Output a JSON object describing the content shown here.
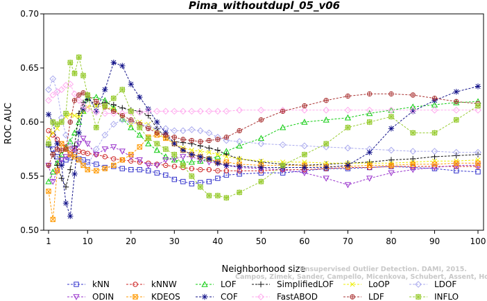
{
  "chart_data": {
    "type": "line",
    "title": "Pima_withoutdupl_05_v06",
    "xlabel": "Neighborhood size",
    "ylabel": "ROC AUC",
    "xlim": [
      1,
      100
    ],
    "ylim": [
      0.5,
      0.7
    ],
    "xticks": [
      "1",
      "10",
      "20",
      "30",
      "40",
      "50",
      "60",
      "70",
      "80",
      "90",
      "100"
    ],
    "yticks": [
      "0.50",
      "0.55",
      "0.60",
      "0.65",
      "0.70"
    ],
    "watermark_line1": "Unsupervised Outlier Detection. DAMI, 2015.",
    "watermark_line2": "Campos, Zimek, Sander, Campello, Micenkova, Schubert, Assent, Houle",
    "legend_position": "bottom",
    "x": [
      1,
      2,
      3,
      4,
      5,
      6,
      7,
      8,
      9,
      10,
      12,
      14,
      16,
      18,
      20,
      22,
      24,
      26,
      28,
      30,
      32,
      34,
      36,
      38,
      40,
      42,
      45,
      50,
      55,
      60,
      65,
      70,
      75,
      80,
      85,
      90,
      95,
      100
    ],
    "series": [
      {
        "name": "kNN",
        "color": "#3333cc",
        "marker": "square",
        "values": [
          0.579,
          0.575,
          0.568,
          0.562,
          0.565,
          0.567,
          0.568,
          0.566,
          0.565,
          0.563,
          0.561,
          0.558,
          0.559,
          0.557,
          0.556,
          0.556,
          0.555,
          0.553,
          0.551,
          0.547,
          0.545,
          0.543,
          0.544,
          0.545,
          0.548,
          0.551,
          0.552,
          0.553,
          0.553,
          0.555,
          0.557,
          0.557,
          0.558,
          0.559,
          0.558,
          0.557,
          0.555,
          0.554
        ]
      },
      {
        "name": "kNNW",
        "color": "#cc2222",
        "marker": "circle",
        "values": [
          0.592,
          0.588,
          0.584,
          0.58,
          0.577,
          0.575,
          0.574,
          0.573,
          0.572,
          0.571,
          0.57,
          0.568,
          0.566,
          0.565,
          0.564,
          0.563,
          0.562,
          0.561,
          0.56,
          0.559,
          0.558,
          0.557,
          0.556,
          0.556,
          0.555,
          0.555,
          0.555,
          0.555,
          0.556,
          0.556,
          0.557,
          0.558,
          0.558,
          0.559,
          0.559,
          0.559,
          0.559,
          0.559
        ]
      },
      {
        "name": "LOF",
        "color": "#11cc11",
        "marker": "triangle",
        "values": [
          0.545,
          0.554,
          0.562,
          0.57,
          0.576,
          0.582,
          0.59,
          0.6,
          0.61,
          0.622,
          0.623,
          0.62,
          0.613,
          0.603,
          0.595,
          0.588,
          0.58,
          0.574,
          0.568,
          0.565,
          0.563,
          0.563,
          0.564,
          0.566,
          0.568,
          0.573,
          0.578,
          0.585,
          0.595,
          0.6,
          0.602,
          0.604,
          0.608,
          0.611,
          0.614,
          0.616,
          0.618,
          0.619
        ]
      },
      {
        "name": "SimplifiedLOF",
        "color": "#111111",
        "marker": "plus",
        "values": [
          0.579,
          0.57,
          0.56,
          0.548,
          0.54,
          0.556,
          0.578,
          0.608,
          0.618,
          0.621,
          0.616,
          0.618,
          0.616,
          0.613,
          0.611,
          0.61,
          0.606,
          0.594,
          0.586,
          0.582,
          0.581,
          0.58,
          0.578,
          0.576,
          0.574,
          0.57,
          0.566,
          0.563,
          0.561,
          0.56,
          0.561,
          0.562,
          0.563,
          0.565,
          0.566,
          0.568,
          0.569,
          0.57
        ]
      },
      {
        "name": "LoOP",
        "color": "#eeee00",
        "marker": "x",
        "values": [
          0.585,
          0.59,
          0.594,
          0.6,
          0.605,
          0.607,
          0.606,
          0.605,
          0.61,
          0.614,
          0.615,
          0.614,
          0.612,
          0.605,
          0.598,
          0.6,
          0.598,
          0.59,
          0.585,
          0.58,
          0.576,
          0.574,
          0.573,
          0.572,
          0.57,
          0.568,
          0.566,
          0.564,
          0.563,
          0.563,
          0.562,
          0.562,
          0.562,
          0.562,
          0.563,
          0.564,
          0.564,
          0.565
        ]
      },
      {
        "name": "LDOF",
        "color": "#aaaaee",
        "marker": "diamond",
        "values": [
          0.63,
          0.64,
          0.628,
          0.604,
          0.588,
          0.578,
          0.572,
          0.566,
          0.562,
          0.56,
          0.575,
          0.588,
          0.598,
          0.602,
          0.6,
          0.598,
          0.596,
          0.594,
          0.594,
          0.592,
          0.592,
          0.593,
          0.592,
          0.59,
          0.586,
          0.583,
          0.582,
          0.58,
          0.579,
          0.578,
          0.577,
          0.576,
          0.575,
          0.574,
          0.573,
          0.573,
          0.572,
          0.572
        ]
      },
      {
        "name": "ODIN",
        "color": "#9933cc",
        "marker": "triangle-down",
        "values": [
          0.56,
          0.545,
          0.555,
          0.565,
          0.568,
          0.57,
          0.575,
          0.58,
          0.585,
          0.58,
          0.57,
          0.575,
          0.577,
          0.573,
          0.568,
          0.565,
          0.56,
          0.56,
          0.565,
          0.566,
          0.568,
          0.568,
          0.565,
          0.563,
          0.562,
          0.56,
          0.558,
          0.557,
          0.556,
          0.553,
          0.548,
          0.542,
          0.548,
          0.553,
          0.556,
          0.558,
          0.56,
          0.56
        ]
      },
      {
        "name": "KDEOS",
        "color": "#ff9900",
        "marker": "square-x",
        "values": [
          0.536,
          0.51,
          0.555,
          0.58,
          0.575,
          0.57,
          0.568,
          0.565,
          0.56,
          0.556,
          0.555,
          0.557,
          0.56,
          0.565,
          0.57,
          0.577,
          0.586,
          0.588,
          0.585,
          0.58,
          0.574,
          0.57,
          0.568,
          0.566,
          0.563,
          0.563,
          0.561,
          0.56,
          0.56,
          0.56,
          0.559,
          0.559,
          0.56,
          0.56,
          0.561,
          0.561,
          0.562,
          0.562
        ]
      },
      {
        "name": "COF",
        "color": "#111188",
        "marker": "asterisk",
        "values": [
          0.607,
          0.6,
          0.58,
          0.56,
          0.525,
          0.513,
          0.552,
          0.59,
          0.612,
          0.625,
          0.61,
          0.63,
          0.655,
          0.652,
          0.635,
          0.623,
          0.612,
          0.6,
          0.59,
          0.58,
          0.574,
          0.57,
          0.568,
          0.566,
          0.562,
          0.56,
          0.559,
          0.558,
          0.558,
          0.558,
          0.558,
          0.56,
          0.572,
          0.594,
          0.61,
          0.62,
          0.628,
          0.633
        ]
      },
      {
        "name": "FastABOD",
        "color": "#ffaaee",
        "marker": "diamond",
        "values": [
          0.62,
          0.625,
          0.628,
          0.63,
          0.634,
          0.635,
          0.626,
          0.62,
          0.615,
          0.612,
          0.609,
          0.608,
          0.608,
          0.608,
          0.609,
          0.609,
          0.61,
          0.61,
          0.61,
          0.61,
          0.61,
          0.61,
          0.61,
          0.61,
          0.61,
          0.61,
          0.611,
          0.611,
          0.611,
          0.611,
          0.611,
          0.611,
          0.611,
          0.611,
          0.611,
          0.611,
          0.611,
          0.611
        ]
      },
      {
        "name": "LDF",
        "color": "#aa3333",
        "marker": "circle-plus",
        "values": [
          0.56,
          0.57,
          0.575,
          0.574,
          0.575,
          0.6,
          0.62,
          0.625,
          0.627,
          0.625,
          0.619,
          0.614,
          0.61,
          0.606,
          0.602,
          0.598,
          0.594,
          0.59,
          0.588,
          0.586,
          0.584,
          0.583,
          0.582,
          0.583,
          0.584,
          0.586,
          0.592,
          0.602,
          0.61,
          0.615,
          0.62,
          0.624,
          0.626,
          0.626,
          0.625,
          0.622,
          0.619,
          0.617
        ]
      },
      {
        "name": "INFLO",
        "color": "#99cc33",
        "marker": "star-box",
        "values": [
          0.58,
          0.6,
          0.598,
          0.6,
          0.608,
          0.655,
          0.645,
          0.66,
          0.643,
          0.625,
          0.595,
          0.615,
          0.622,
          0.63,
          0.61,
          0.595,
          0.585,
          0.58,
          0.575,
          0.57,
          0.56,
          0.55,
          0.54,
          0.532,
          0.532,
          0.53,
          0.535,
          0.545,
          0.56,
          0.57,
          0.58,
          0.595,
          0.6,
          0.605,
          0.59,
          0.59,
          0.602,
          0.615
        ]
      }
    ]
  }
}
